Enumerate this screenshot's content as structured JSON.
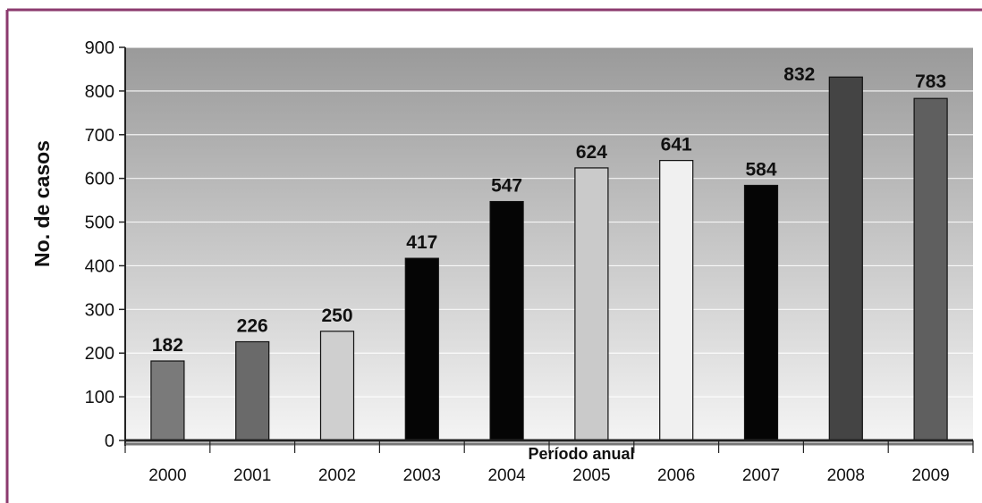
{
  "colors": {
    "border": "#8b3a6e",
    "plot_top": "#9a9a9a",
    "plot_bottom": "#f4f4f4",
    "axis": "#222222",
    "bar_stroke": "#111111"
  },
  "chart_data": {
    "type": "bar",
    "categories": [
      "2000",
      "2001",
      "2002",
      "2003",
      "2004",
      "2005",
      "2006",
      "2007",
      "2008",
      "2009"
    ],
    "values": [
      182,
      226,
      250,
      417,
      547,
      624,
      641,
      584,
      832,
      783
    ],
    "data_labels": [
      "182",
      "226",
      "250",
      "417",
      "547",
      "624",
      "641",
      "584",
      "832",
      "783"
    ],
    "bar_colors": [
      "#7a7a7a",
      "#6a6a6a",
      "#cfcfcf",
      "#050505",
      "#050505",
      "#cacaca",
      "#f0f0f0",
      "#050505",
      "#444444",
      "#5f5f5f"
    ],
    "title": "",
    "xlabel": "Período anual",
    "ylabel": "No. de casos",
    "ylim": [
      0,
      900
    ],
    "yticks": [
      "0",
      "100",
      "200",
      "300",
      "400",
      "500",
      "600",
      "700",
      "800",
      "900"
    ],
    "grid": true,
    "legend": "none"
  }
}
